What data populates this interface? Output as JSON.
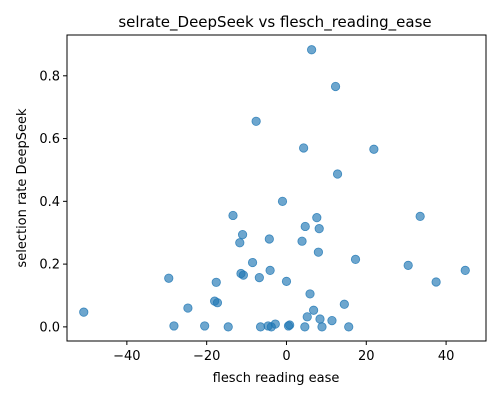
{
  "chart_data": {
    "type": "scatter",
    "title": "selrate_DeepSeek vs flesch_reading_ease",
    "xlabel": "flesch reading ease",
    "ylabel": "selection rate DeepSeek",
    "xlim": [
      -55,
      50
    ],
    "ylim": [
      -0.045,
      0.93
    ],
    "xticks": [
      -40,
      -20,
      0,
      20,
      40
    ],
    "yticks": [
      0.0,
      0.2,
      0.4,
      0.6,
      0.8
    ],
    "grid": false,
    "legend": "none",
    "marker_color": "#1f77b4",
    "marker_opacity": 0.65,
    "series": [
      {
        "x": [
          -50.8,
          -29.5,
          -28.2,
          -24.7,
          -20.5,
          -18.0,
          -17.6,
          -17.3,
          -14.6,
          -13.4,
          -11.7,
          -11.4,
          -11.0,
          -10.8,
          -8.5,
          -7.6,
          -6.8,
          -6.5,
          -4.6,
          -4.3,
          -4.1,
          -3.8,
          -2.8,
          -1.0,
          0.0,
          0.5,
          0.8,
          3.9,
          4.3,
          4.6,
          4.7,
          5.2,
          5.9,
          6.3,
          6.8,
          7.6,
          8.0,
          8.2,
          8.4,
          8.9,
          11.4,
          12.3,
          12.8,
          14.5,
          15.6,
          17.3,
          21.9,
          30.5,
          33.5,
          37.5,
          44.8
        ],
        "y": [
          0.047,
          0.155,
          0.003,
          0.06,
          0.003,
          0.082,
          0.142,
          0.077,
          0.0,
          0.355,
          0.268,
          0.17,
          0.294,
          0.165,
          0.205,
          0.655,
          0.157,
          0.0,
          0.003,
          0.28,
          0.18,
          0.0,
          0.009,
          0.4,
          0.145,
          0.003,
          0.006,
          0.273,
          0.57,
          0.0,
          0.32,
          0.032,
          0.105,
          0.883,
          0.053,
          0.348,
          0.238,
          0.313,
          0.025,
          0.0,
          0.02,
          0.766,
          0.487,
          0.072,
          0.0,
          0.215,
          0.566,
          0.196,
          0.352,
          0.143,
          0.18
        ]
      }
    ]
  }
}
